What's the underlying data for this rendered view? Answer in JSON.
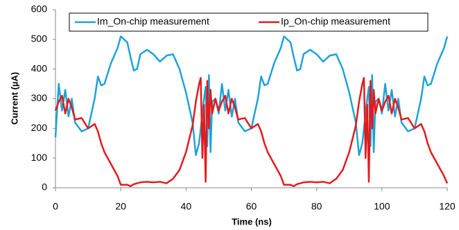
{
  "chart_data": {
    "type": "line",
    "x_label": "Time (ns)",
    "y_label": "Current (µA)",
    "x": [
      0,
      1,
      2,
      3,
      4,
      5,
      6,
      8,
      10,
      12,
      13,
      14,
      15,
      17,
      19,
      20,
      22,
      23,
      24,
      25,
      26,
      28,
      30,
      32,
      34,
      36,
      38,
      40,
      42,
      43,
      44,
      44.5,
      45,
      45.5,
      46,
      46.5,
      47,
      47.5,
      48,
      49,
      50,
      51,
      52,
      53,
      54,
      55,
      56,
      58,
      60,
      62,
      63,
      64,
      65,
      67,
      69,
      70,
      72,
      73,
      74,
      75,
      76,
      78,
      80,
      82,
      84,
      86,
      88,
      90,
      92,
      93,
      94,
      94.5,
      95,
      95.5,
      96,
      96.5,
      97,
      97.5,
      98,
      99,
      100,
      101,
      102,
      103,
      104,
      105,
      106,
      108,
      110,
      112,
      113,
      114,
      115,
      117,
      119,
      120
    ],
    "series": [
      {
        "name": "Im_On-chip measurement",
        "color": "#1ca3d8",
        "values": [
          170,
          350,
          260,
          330,
          240,
          300,
          220,
          190,
          200,
          300,
          375,
          345,
          350,
          420,
          470,
          510,
          490,
          440,
          395,
          400,
          450,
          465,
          450,
          425,
          445,
          450,
          400,
          320,
          220,
          110,
          150,
          200,
          250,
          300,
          340,
          140,
          380,
          120,
          290,
          300,
          250,
          350,
          260,
          330,
          240,
          300,
          220,
          190,
          200,
          300,
          375,
          345,
          350,
          420,
          470,
          510,
          490,
          440,
          395,
          400,
          450,
          465,
          450,
          425,
          445,
          450,
          400,
          320,
          220,
          110,
          150,
          200,
          250,
          300,
          340,
          140,
          380,
          120,
          290,
          300,
          250,
          350,
          260,
          330,
          240,
          300,
          220,
          190,
          200,
          300,
          375,
          345,
          350,
          420,
          470,
          510
        ]
      },
      {
        "name": "Ip_On-chip measurement",
        "color": "#e31a1c",
        "values": [
          260,
          290,
          310,
          250,
          300,
          270,
          230,
          235,
          200,
          215,
          190,
          150,
          120,
          80,
          40,
          10,
          10,
          5,
          12,
          15,
          18,
          20,
          18,
          20,
          15,
          30,
          60,
          120,
          210,
          290,
          350,
          370,
          100,
          280,
          20,
          360,
          200,
          330,
          250,
          300,
          260,
          290,
          310,
          250,
          300,
          270,
          230,
          235,
          200,
          215,
          190,
          150,
          120,
          80,
          40,
          10,
          10,
          5,
          12,
          15,
          18,
          20,
          18,
          20,
          15,
          30,
          60,
          120,
          210,
          290,
          350,
          370,
          100,
          280,
          20,
          360,
          200,
          330,
          250,
          300,
          260,
          290,
          310,
          250,
          300,
          270,
          230,
          235,
          200,
          215,
          190,
          150,
          120,
          80,
          40,
          15
        ]
      }
    ],
    "xlim": [
      0,
      120
    ],
    "xticks": [
      0,
      20,
      40,
      60,
      80,
      100,
      120
    ],
    "ylim": [
      0,
      600
    ],
    "yticks": [
      0,
      100,
      200,
      300,
      400,
      500,
      600
    ],
    "legend": "upper center",
    "grid": false
  }
}
